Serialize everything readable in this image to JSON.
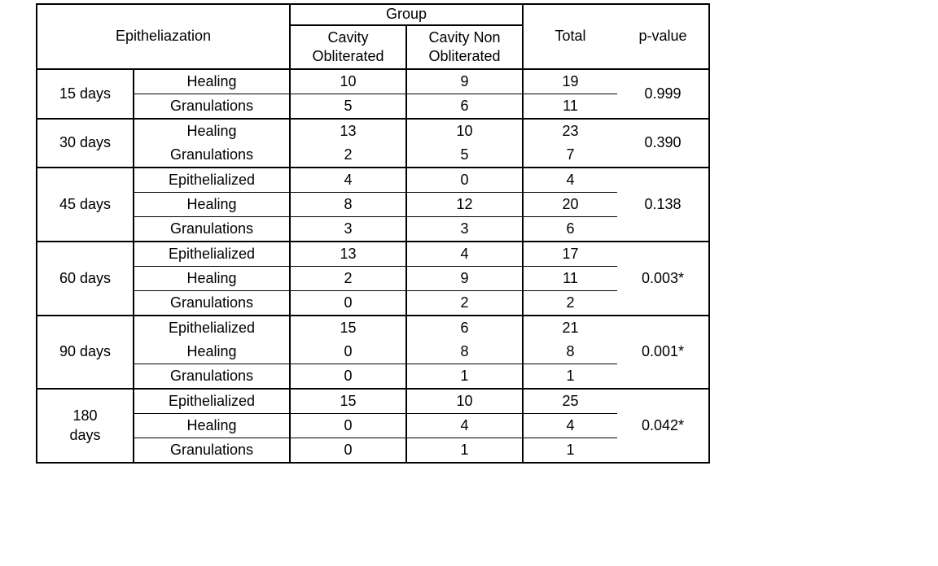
{
  "colors": {
    "background": "#ffffff",
    "border": "#000000",
    "text": "#000000"
  },
  "table": {
    "header": {
      "epitheliazation": "Epitheliazation",
      "group": "Group",
      "cavity_obliterated": "Cavity Obliterated",
      "cavity_non_obliterated": "Cavity Non Obliterated",
      "total": "Total",
      "p_value": "p-value"
    },
    "groups": [
      {
        "time": "15 days",
        "p_value": "0.999",
        "rows": [
          {
            "label": "Healing",
            "cavity_obliterated": "10",
            "cavity_non_obliterated": "9",
            "total": "19",
            "divider_below": true
          },
          {
            "label": "Granulations",
            "cavity_obliterated": "5",
            "cavity_non_obliterated": "6",
            "total": "11",
            "divider_below": false
          }
        ]
      },
      {
        "time": "30 days",
        "p_value": "0.390",
        "rows": [
          {
            "label": "Healing",
            "cavity_obliterated": "13",
            "cavity_non_obliterated": "10",
            "total": "23",
            "divider_below": false
          },
          {
            "label": "Granulations",
            "cavity_obliterated": "2",
            "cavity_non_obliterated": "5",
            "total": "7",
            "divider_below": false
          }
        ]
      },
      {
        "time": "45 days",
        "p_value": "0.138",
        "rows": [
          {
            "label": "Epithelialized",
            "cavity_obliterated": "4",
            "cavity_non_obliterated": "0",
            "total": "4",
            "divider_below": true
          },
          {
            "label": "Healing",
            "cavity_obliterated": "8",
            "cavity_non_obliterated": "12",
            "total": "20",
            "divider_below": true
          },
          {
            "label": "Granulations",
            "cavity_obliterated": "3",
            "cavity_non_obliterated": "3",
            "total": "6",
            "divider_below": false
          }
        ]
      },
      {
        "time": "60 days",
        "p_value": "0.003*",
        "rows": [
          {
            "label": "Epithelialized",
            "cavity_obliterated": "13",
            "cavity_non_obliterated": "4",
            "total": "17",
            "divider_below": true
          },
          {
            "label": "Healing",
            "cavity_obliterated": "2",
            "cavity_non_obliterated": "9",
            "total": "11",
            "divider_below": true
          },
          {
            "label": "Granulations",
            "cavity_obliterated": "0",
            "cavity_non_obliterated": "2",
            "total": "2",
            "divider_below": false
          }
        ]
      },
      {
        "time": "90 days",
        "p_value": "0.001*",
        "rows": [
          {
            "label": "Epithelialized",
            "cavity_obliterated": "15",
            "cavity_non_obliterated": "6",
            "total": "21",
            "divider_below": false
          },
          {
            "label": "Healing",
            "cavity_obliterated": "0",
            "cavity_non_obliterated": "8",
            "total": "8",
            "divider_below": true
          },
          {
            "label": "Granulations",
            "cavity_obliterated": "0",
            "cavity_non_obliterated": "1",
            "total": "1",
            "divider_below": false
          }
        ]
      },
      {
        "time": "180\ndays",
        "p_value": "0.042*",
        "rows": [
          {
            "label": "Epithelialized",
            "cavity_obliterated": "15",
            "cavity_non_obliterated": "10",
            "total": "25",
            "divider_below": true
          },
          {
            "label": "Healing",
            "cavity_obliterated": "0",
            "cavity_non_obliterated": "4",
            "total": "4",
            "divider_below": true
          },
          {
            "label": "Granulations",
            "cavity_obliterated": "0",
            "cavity_non_obliterated": "1",
            "total": "1",
            "divider_below": false
          }
        ]
      }
    ]
  }
}
